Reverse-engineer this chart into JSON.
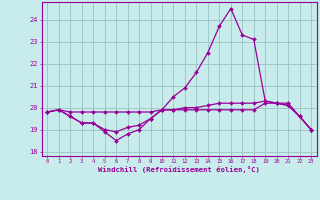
{
  "xlabel": "Windchill (Refroidissement éolien,°C)",
  "bg_color": "#c8ecec",
  "grid_color": "#a0c8c8",
  "line_color": "#990099",
  "x_values": [
    0,
    1,
    2,
    3,
    4,
    5,
    6,
    7,
    8,
    9,
    10,
    11,
    12,
    13,
    14,
    15,
    16,
    17,
    18,
    19,
    20,
    21,
    22,
    23
  ],
  "line1": [
    19.8,
    19.9,
    19.6,
    19.3,
    19.3,
    18.9,
    18.5,
    18.8,
    19.0,
    19.5,
    19.9,
    20.5,
    20.9,
    21.6,
    22.5,
    23.7,
    24.5,
    23.3,
    23.1,
    20.3,
    20.2,
    20.1,
    19.6,
    19.0
  ],
  "line2": [
    19.8,
    19.9,
    19.6,
    19.3,
    19.3,
    19.0,
    18.9,
    19.1,
    19.2,
    19.5,
    19.9,
    19.9,
    19.9,
    19.9,
    19.9,
    19.9,
    19.9,
    19.9,
    19.9,
    20.2,
    20.2,
    20.1,
    19.6,
    19.0
  ],
  "line3": [
    19.8,
    19.9,
    19.8,
    19.8,
    19.8,
    19.8,
    19.8,
    19.8,
    19.8,
    19.8,
    19.9,
    19.9,
    20.0,
    20.0,
    20.1,
    20.2,
    20.2,
    20.2,
    20.2,
    20.3,
    20.2,
    20.2,
    19.6,
    19.0
  ],
  "ylim": [
    17.8,
    24.8
  ],
  "yticks": [
    18,
    19,
    20,
    21,
    22,
    23,
    24
  ],
  "xlim": [
    -0.5,
    23.5
  ],
  "figsize": [
    3.2,
    2.0
  ],
  "dpi": 100
}
